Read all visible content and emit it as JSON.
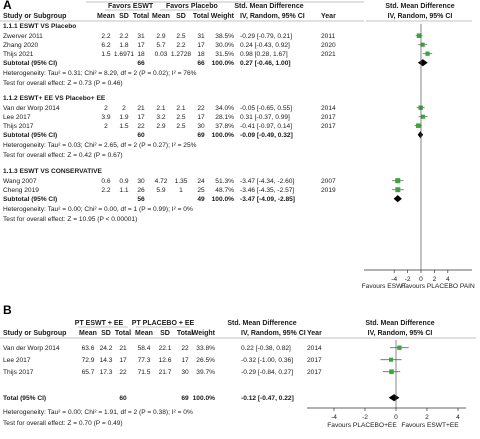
{
  "panels": [
    {
      "label": "A",
      "headers": {
        "group_left": "Favors ESWT",
        "group_right": "Favors Placebo",
        "group_effect": "Std. Mean Difference",
        "group_plot": "Std. Mean Difference",
        "study": "Study or Subgroup",
        "mean": "Mean",
        "sd": "SD",
        "total": "Total",
        "weight": "Weight",
        "effect": "IV, Random, 95% CI",
        "year": "Year",
        "plot": "IV, Random, 95% CI"
      },
      "subgroups": [
        {
          "title": "1.1.1 ESWT VS Placebo",
          "studies": [
            {
              "name": "Zwerver 2011",
              "m1": "2.2",
              "sd1": "2.2",
              "n1": "31",
              "m2": "2.9",
              "sd2": "2.5",
              "n2": "31",
              "weight": "38.5%",
              "ci": "-0.29 [-0.79, 0.21]",
              "year": "2011"
            },
            {
              "name": "Zhang 2020",
              "m1": "6.2",
              "sd1": "1.8",
              "n1": "17",
              "m2": "5.7",
              "sd2": "2.2",
              "n2": "17",
              "weight": "30.0%",
              "ci": "0.24 [-0.43, 0.92]",
              "year": "2020"
            },
            {
              "name": "Thijs 2021",
              "m1": "1.5",
              "sd1": "1.6971",
              "n1": "18",
              "m2": "0.03",
              "sd2": "1.2728",
              "n2": "18",
              "weight": "31.5%",
              "ci": "0.98 [0.28, 1.67]",
              "year": "2021"
            }
          ],
          "subtotal": {
            "label": "Subtotal (95% CI)",
            "n1": "66",
            "n2": "66",
            "weight": "100.0%",
            "ci": "0.27 [-0.46, 1.00]"
          },
          "heterogeneity": "Heterogeneity: Tau² = 0.31; Chi² = 8.29, df = 2 (P = 0.02); I² = 76%",
          "overall": "Test for overall effect: Z = 0.73 (P = 0.46)"
        },
        {
          "title": "1.1.2 ESWT+ EE VS Placebo+ EE",
          "studies": [
            {
              "name": "Van der Worp 2014",
              "m1": "2",
              "sd1": "2",
              "n1": "21",
              "m2": "2.1",
              "sd2": "2.1",
              "n2": "22",
              "weight": "34.0%",
              "ci": "-0.05 [-0.65, 0.55]",
              "year": "2014"
            },
            {
              "name": "Lee 2017",
              "m1": "3.9",
              "sd1": "1.9",
              "n1": "17",
              "m2": "3.2",
              "sd2": "2.5",
              "n2": "17",
              "weight": "28.1%",
              "ci": "0.31 [-0.37, 0.99]",
              "year": "2017"
            },
            {
              "name": "Thijs 2017",
              "m1": "2",
              "sd1": "1.5",
              "n1": "22",
              "m2": "2.9",
              "sd2": "2.5",
              "n2": "30",
              "weight": "37.8%",
              "ci": "-0.41 [-0.97, 0.14]",
              "year": "2017"
            }
          ],
          "subtotal": {
            "label": "Subtotal (95% CI)",
            "n1": "60",
            "n2": "69",
            "weight": "100.0%",
            "ci": "-0.09 [-0.49, 0.32]"
          },
          "heterogeneity": "Heterogeneity: Tau² = 0.03; Chi² = 2.65, df = 2 (P = 0.27); I² = 25%",
          "overall": "Test for overall effect: Z = 0.42 (P = 0.67)"
        },
        {
          "title": "1.1.3 ESWT VS CONSERVATIVE",
          "studies": [
            {
              "name": "Wang 2007",
              "m1": "0.6",
              "sd1": "0.9",
              "n1": "30",
              "m2": "4.72",
              "sd2": "1.35",
              "n2": "24",
              "weight": "51.3%",
              "ci": "-3.47 [-4.34, -2.60]",
              "year": "2007"
            },
            {
              "name": "Cheng 2019",
              "m1": "2.2",
              "sd1": "1.1",
              "n1": "26",
              "m2": "5.9",
              "sd2": "1",
              "n2": "25",
              "weight": "48.7%",
              "ci": "-3.46 [-4.35, -2.57]",
              "year": "2019"
            }
          ],
          "subtotal": {
            "label": "Subtotal (95% CI)",
            "n1": "56",
            "n2": "49",
            "weight": "100.0%",
            "ci": "-3.47 [-4.09, -2.85]"
          },
          "heterogeneity": "Heterogeneity: Tau² = 0.00; Chi² = 0.00, df = 1 (P = 0.99); I² = 0%",
          "overall": "Test for overall effect: Z = 10.95 (P < 0.00001)"
        }
      ],
      "axis": {
        "ticks": [
          "-4",
          "-2",
          "0",
          "2",
          "4"
        ],
        "left_label": "Favours ESWT",
        "right_label": "Favours PLACEBO PAIN"
      }
    },
    {
      "label": "B",
      "headers": {
        "group_left": "PT ESWT + EE",
        "group_right": "PT PLACEBO + EE",
        "group_effect": "Std. Mean Difference",
        "group_plot": "Std. Mean Difference",
        "study": "Study or Subgroup",
        "mean": "Mean",
        "sd": "SD",
        "total": "Total",
        "weight": "Weight",
        "effect": "IV, Random, 95% CI",
        "year": "Year",
        "plot": "IV, Random, 95% CI"
      },
      "studies": [
        {
          "name": "Van der Worp 2014",
          "m1": "63.6",
          "sd1": "24.2",
          "n1": "21",
          "m2": "58.4",
          "sd2": "22.1",
          "n2": "22",
          "weight": "33.8%",
          "ci": "0.22 [-0.38, 0.82]",
          "year": "2014"
        },
        {
          "name": "Lee 2017",
          "m1": "72.9",
          "sd1": "14.3",
          "n1": "17",
          "m2": "77.3",
          "sd2": "12.6",
          "n2": "17",
          "weight": "26.5%",
          "ci": "-0.32 [-1.00, 0.36]",
          "year": "2017"
        },
        {
          "name": "Thijs 2017",
          "m1": "65.7",
          "sd1": "17.3",
          "n1": "22",
          "m2": "71.5",
          "sd2": "21.7",
          "n2": "30",
          "weight": "39.7%",
          "ci": "-0.29 [-0.84, 0.27]",
          "year": "2017"
        }
      ],
      "total": {
        "label": "Total (95% CI)",
        "n1": "60",
        "n2": "69",
        "weight": "100.0%",
        "ci": "-0.12 [-0.47, 0.22]"
      },
      "heterogeneity": "Heterogeneity: Tau² = 0.00; Chi² = 1.91, df = 2 (P = 0.38); I² = 0%",
      "overall": "Test for overall effect: Z = 0.70 (P = 0.49)",
      "axis": {
        "ticks": [
          "-4",
          "-2",
          "0",
          "2",
          "4"
        ],
        "left_label": "Favours PLACEBO+EE",
        "right_label": "Favours ESWT+EE"
      }
    }
  ],
  "colors": {
    "marker": "#3aa63a",
    "diamond": "#000000",
    "line": "#555555",
    "ci": "#6a6a6a"
  },
  "chart_data": [
    {
      "type": "scatter",
      "subtype": "forest-plot",
      "panel": "A",
      "xlim": [
        -4,
        4
      ],
      "x_ticks": [
        -4,
        -2,
        0,
        2,
        4
      ],
      "xlabel_left": "Favours ESWT",
      "xlabel_right": "Favours PLACEBO PAIN",
      "studies": [
        {
          "name": "Zwerver 2011",
          "estimate": -0.29,
          "lower": -0.79,
          "upper": 0.21,
          "weight": 38.5
        },
        {
          "name": "Zhang 2020",
          "estimate": 0.24,
          "lower": -0.43,
          "upper": 0.92,
          "weight": 30.0
        },
        {
          "name": "Thijs 2021",
          "estimate": 0.98,
          "lower": 0.28,
          "upper": 1.67,
          "weight": 31.5
        },
        {
          "name": "Van der Worp 2014",
          "estimate": -0.05,
          "lower": -0.65,
          "upper": 0.55,
          "weight": 34.0
        },
        {
          "name": "Lee 2017",
          "estimate": 0.31,
          "lower": -0.37,
          "upper": 0.99,
          "weight": 28.1
        },
        {
          "name": "Thijs 2017",
          "estimate": -0.41,
          "lower": -0.97,
          "upper": 0.14,
          "weight": 37.8
        },
        {
          "name": "Wang 2007",
          "estimate": -3.47,
          "lower": -4.34,
          "upper": -2.6,
          "weight": 51.3
        },
        {
          "name": "Cheng 2019",
          "estimate": -3.46,
          "lower": -4.35,
          "upper": -2.57,
          "weight": 48.7
        }
      ],
      "pooled": [
        {
          "name": "1.1.1 Subtotal",
          "estimate": 0.27,
          "lower": -0.46,
          "upper": 1.0
        },
        {
          "name": "1.1.2 Subtotal",
          "estimate": -0.09,
          "lower": -0.49,
          "upper": 0.32
        },
        {
          "name": "1.1.3 Subtotal",
          "estimate": -3.47,
          "lower": -4.09,
          "upper": -2.85
        }
      ]
    },
    {
      "type": "scatter",
      "subtype": "forest-plot",
      "panel": "B",
      "xlim": [
        -4,
        4
      ],
      "x_ticks": [
        -4,
        -2,
        0,
        2,
        4
      ],
      "xlabel_left": "Favours PLACEBO+EE",
      "xlabel_right": "Favours ESWT+EE",
      "studies": [
        {
          "name": "Van der Worp 2014",
          "estimate": 0.22,
          "lower": -0.38,
          "upper": 0.82,
          "weight": 33.8
        },
        {
          "name": "Lee 2017",
          "estimate": -0.32,
          "lower": -1.0,
          "upper": 0.36,
          "weight": 26.5
        },
        {
          "name": "Thijs 2017",
          "estimate": -0.29,
          "lower": -0.84,
          "upper": 0.27,
          "weight": 39.7
        }
      ],
      "pooled": [
        {
          "name": "Total",
          "estimate": -0.12,
          "lower": -0.47,
          "upper": 0.22
        }
      ]
    }
  ]
}
